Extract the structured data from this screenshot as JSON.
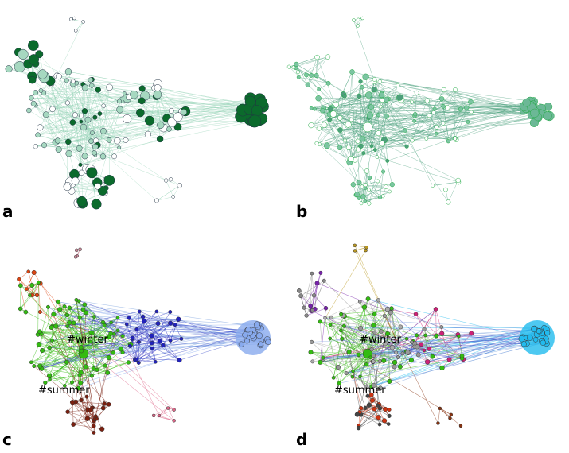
{
  "panels": [
    {
      "label": "a"
    },
    {
      "label": "b"
    },
    {
      "label": "c",
      "node_labels": [
        "#winter",
        "#summer"
      ]
    },
    {
      "label": "d",
      "node_labels": [
        "#winter",
        "#summer"
      ]
    }
  ]
}
